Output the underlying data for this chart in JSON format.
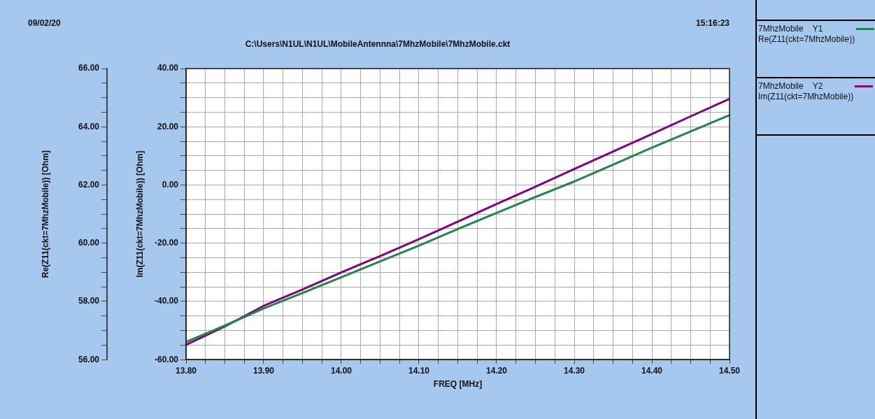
{
  "chart_data": {
    "type": "line",
    "subtitle": "C:\\Users\\N1UL\\N1UL\\MobileAntennna\\7MhzMobile\\7MhzMobile.ckt",
    "annotations": [
      "09/02/20",
      "15:16:23"
    ],
    "xlabel": "FREQ [MHz]",
    "ylabel": "Re(Z11(ckt=7MhzMobile)) [Ohm]",
    "y2label": "Im(Z11(ckt=7MhzMobile)) [Ohm]",
    "x": [
      13.8,
      13.85,
      13.9,
      13.95,
      14.0,
      14.05,
      14.1,
      14.15,
      14.2,
      14.25,
      14.3,
      14.35,
      14.4,
      14.45,
      14.5
    ],
    "series": [
      {
        "name": "7MhzMobile    Y1\nRe(Z11(ckt=7MhzMobile))",
        "color": "#23834a",
        "values": [
          56.61,
          57.17,
          57.76,
          58.29,
          58.83,
          59.38,
          59.92,
          60.49,
          61.04,
          61.59,
          62.12,
          62.7,
          63.28,
          63.84,
          64.4
        ]
      },
      {
        "name": "7MhzMobile    Y2\nIm(Z11(ckt=7MhzMobile))",
        "color": "#800080",
        "axis": "y2",
        "values": [
          -54.9,
          -48.6,
          -41.5,
          -35.9,
          -30.0,
          -24.4,
          -18.6,
          -12.6,
          -6.5,
          -0.6,
          5.5,
          11.5,
          17.5,
          23.6,
          29.6
        ]
      }
    ],
    "xlim": [
      13.8,
      14.5
    ],
    "xticks": [
      {
        "value": 13.8,
        "label": "13.80"
      },
      {
        "value": 13.825,
        "label": null
      },
      {
        "value": 13.85,
        "label": null
      },
      {
        "value": 13.875,
        "label": null
      },
      {
        "value": 13.9,
        "label": "13.90"
      },
      {
        "value": 13.925,
        "label": null
      },
      {
        "value": 13.95,
        "label": null
      },
      {
        "value": 13.975,
        "label": null
      },
      {
        "value": 14.0,
        "label": "14.00"
      },
      {
        "value": 14.025,
        "label": null
      },
      {
        "value": 14.05,
        "label": null
      },
      {
        "value": 14.075,
        "label": null
      },
      {
        "value": 14.1,
        "label": "14.10"
      },
      {
        "value": 14.125,
        "label": null
      },
      {
        "value": 14.15,
        "label": null
      },
      {
        "value": 14.175,
        "label": null
      },
      {
        "value": 14.2,
        "label": "14.20"
      },
      {
        "value": 14.225,
        "label": null
      },
      {
        "value": 14.25,
        "label": null
      },
      {
        "value": 14.275,
        "label": null
      },
      {
        "value": 14.3,
        "label": "14.30"
      },
      {
        "value": 14.325,
        "label": null
      },
      {
        "value": 14.35,
        "label": null
      },
      {
        "value": 14.375,
        "label": null
      },
      {
        "value": 14.4,
        "label": "14.40"
      },
      {
        "value": 14.425,
        "label": null
      },
      {
        "value": 14.45,
        "label": null
      },
      {
        "value": 14.475,
        "label": null
      },
      {
        "value": 14.5,
        "label": "14.50"
      }
    ],
    "ylim": [
      56,
      66
    ],
    "yticks": [
      {
        "value": 56,
        "label": "56.00"
      },
      {
        "value": 56.5,
        "label": null
      },
      {
        "value": 57,
        "label": null
      },
      {
        "value": 57.5,
        "label": null
      },
      {
        "value": 58,
        "label": "58.00"
      },
      {
        "value": 58.5,
        "label": null
      },
      {
        "value": 59,
        "label": null
      },
      {
        "value": 59.5,
        "label": null
      },
      {
        "value": 60,
        "label": "60.00"
      },
      {
        "value": 60.5,
        "label": null
      },
      {
        "value": 61,
        "label": null
      },
      {
        "value": 61.5,
        "label": null
      },
      {
        "value": 62,
        "label": "62.00"
      },
      {
        "value": 62.5,
        "label": null
      },
      {
        "value": 63,
        "label": null
      },
      {
        "value": 63.5,
        "label": null
      },
      {
        "value": 64,
        "label": "64.00"
      },
      {
        "value": 64.5,
        "label": null
      },
      {
        "value": 65,
        "label": null
      },
      {
        "value": 65.5,
        "label": null
      },
      {
        "value": 66,
        "label": "66.00"
      }
    ],
    "y2lim": [
      -60,
      40
    ],
    "y2ticks": [
      {
        "value": -60,
        "label": "-60.00"
      },
      {
        "value": -55,
        "label": null
      },
      {
        "value": -50,
        "label": null
      },
      {
        "value": -45,
        "label": null
      },
      {
        "value": -40,
        "label": "-40.00"
      },
      {
        "value": -35,
        "label": null
      },
      {
        "value": -30,
        "label": null
      },
      {
        "value": -25,
        "label": null
      },
      {
        "value": -20,
        "label": "-20.00"
      },
      {
        "value": -15,
        "label": null
      },
      {
        "value": -10,
        "label": null
      },
      {
        "value": -5,
        "label": null
      },
      {
        "value": 0,
        "label": "0.00"
      },
      {
        "value": 5,
        "label": null
      },
      {
        "value": 10,
        "label": null
      },
      {
        "value": 15,
        "label": null
      },
      {
        "value": 20,
        "label": "20.00"
      },
      {
        "value": 25,
        "label": null
      },
      {
        "value": 30,
        "label": null
      },
      {
        "value": 35,
        "label": null
      },
      {
        "value": 40,
        "label": "40.00"
      }
    ],
    "grid": true,
    "legend": "right",
    "marker": "none",
    "line_style": "solid"
  }
}
